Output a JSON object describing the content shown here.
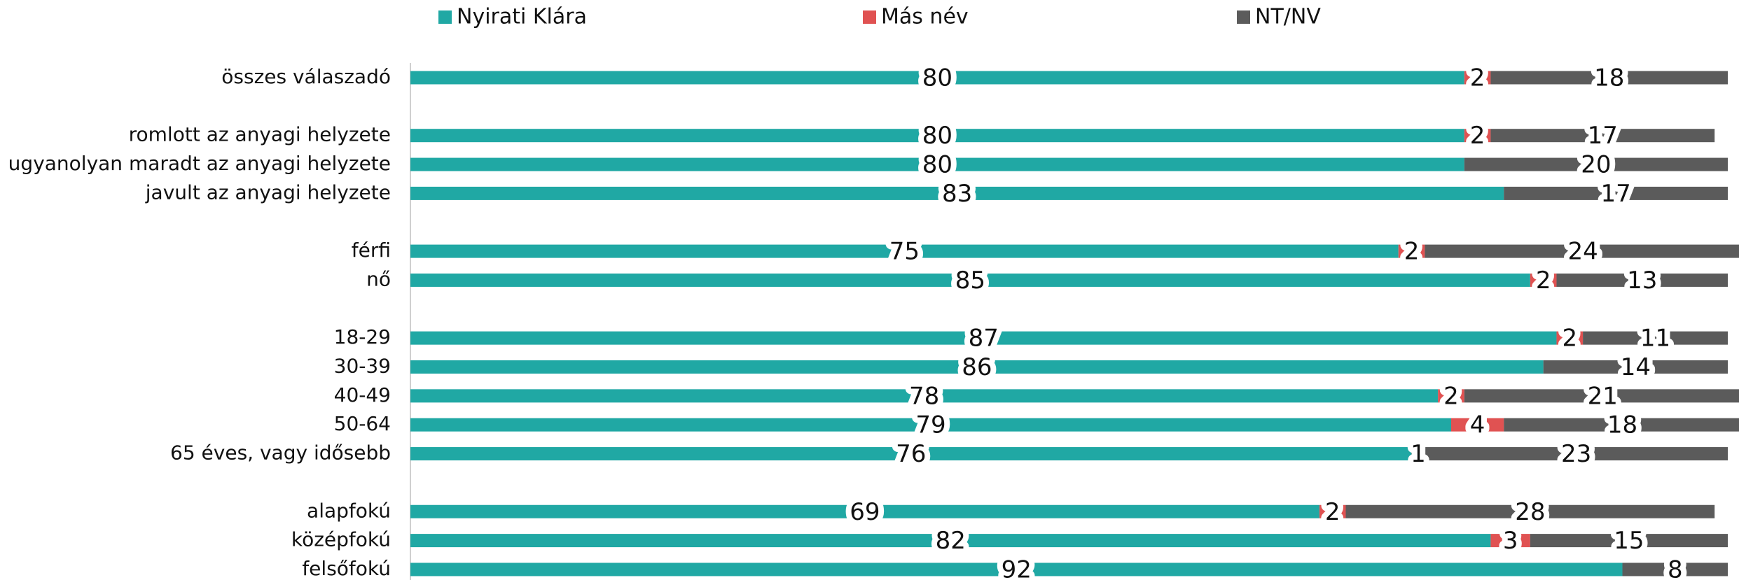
{
  "chart_data": {
    "type": "stacked_bar_horizontal",
    "categories": [
      "összes válaszadó",
      null,
      "romlott az anyagi helyzete",
      "ugyanolyan maradt az anyagi helyzete",
      "javult az anyagi helyzete",
      null,
      "férfi",
      "nő",
      null,
      "18-29",
      "30-39",
      "40-49",
      "50-64",
      "65 éves, vagy idősebb",
      null,
      "alapfokú",
      "középfokú",
      "felsőfokú"
    ],
    "series": [
      {
        "name": "Nyirati Klára",
        "color": "#20a8a4",
        "values": [
          80,
          null,
          80,
          80,
          83,
          null,
          75,
          85,
          null,
          87,
          86,
          78,
          79,
          76,
          null,
          69,
          82,
          92
        ]
      },
      {
        "name": "Más név",
        "color": "#e05252",
        "values": [
          2,
          null,
          2,
          null,
          null,
          null,
          2,
          2,
          null,
          2,
          null,
          2,
          4,
          1,
          null,
          2,
          3,
          null
        ]
      },
      {
        "name": "NT/NV",
        "color": "#5b5b5b",
        "values": [
          18,
          null,
          17,
          20,
          17,
          null,
          24,
          13,
          null,
          11,
          14,
          21,
          18,
          23,
          null,
          28,
          15,
          8
        ]
      }
    ],
    "xlim": [
      0,
      100
    ],
    "legend": "top"
  }
}
